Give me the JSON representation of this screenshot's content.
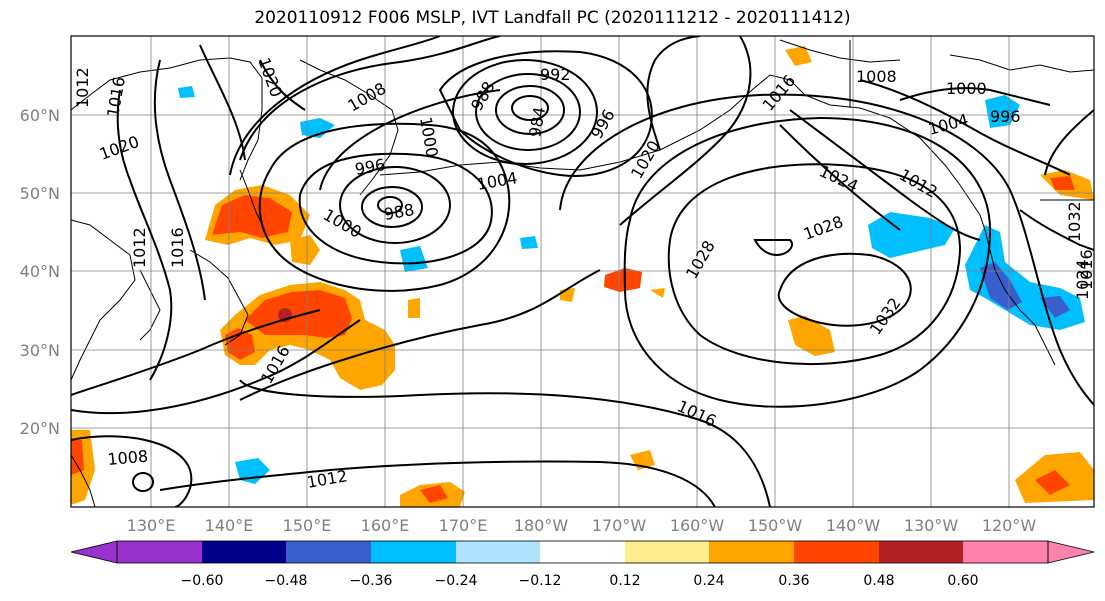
{
  "title": "2020110912 F006 MSLP, IVT Landfall PC (2020111212 - 2020111412)",
  "map": {
    "lat_labels": [
      "60°N",
      "50°N",
      "40°N",
      "30°N",
      "20°N"
    ],
    "lon_labels": [
      "130°E",
      "140°E",
      "150°E",
      "160°E",
      "170°E",
      "180°W",
      "170°W",
      "160°W",
      "150°W",
      "140°W",
      "130°W",
      "120°W"
    ],
    "contour_labels": [
      "1012",
      "1016",
      "1020",
      "1012",
      "1016",
      "1020",
      "1008",
      "1000",
      "992",
      "988",
      "984",
      "996",
      "1020",
      "1016",
      "1008",
      "1000",
      "1004",
      "996",
      "1012",
      "996",
      "1000",
      "988",
      "1004",
      "1024",
      "1028",
      "1024",
      "1028",
      "1032",
      "1032",
      "1016",
      "1016",
      "1008",
      "1012",
      "1016"
    ]
  },
  "colorbar": {
    "tick_labels": [
      "−0.60",
      "−0.48",
      "−0.36",
      "−0.24",
      "−0.12",
      "0.12",
      "0.24",
      "0.36",
      "0.48",
      "0.60"
    ],
    "bin_colors": [
      "#9932CC",
      "#00008B",
      "#3A5FCD",
      "#00BFFF",
      "#B0E2FF",
      "#FFFFFF",
      "#FFEC8B",
      "#FFA500",
      "#FF4500",
      "#B22222",
      "#FF82AB"
    ]
  }
}
